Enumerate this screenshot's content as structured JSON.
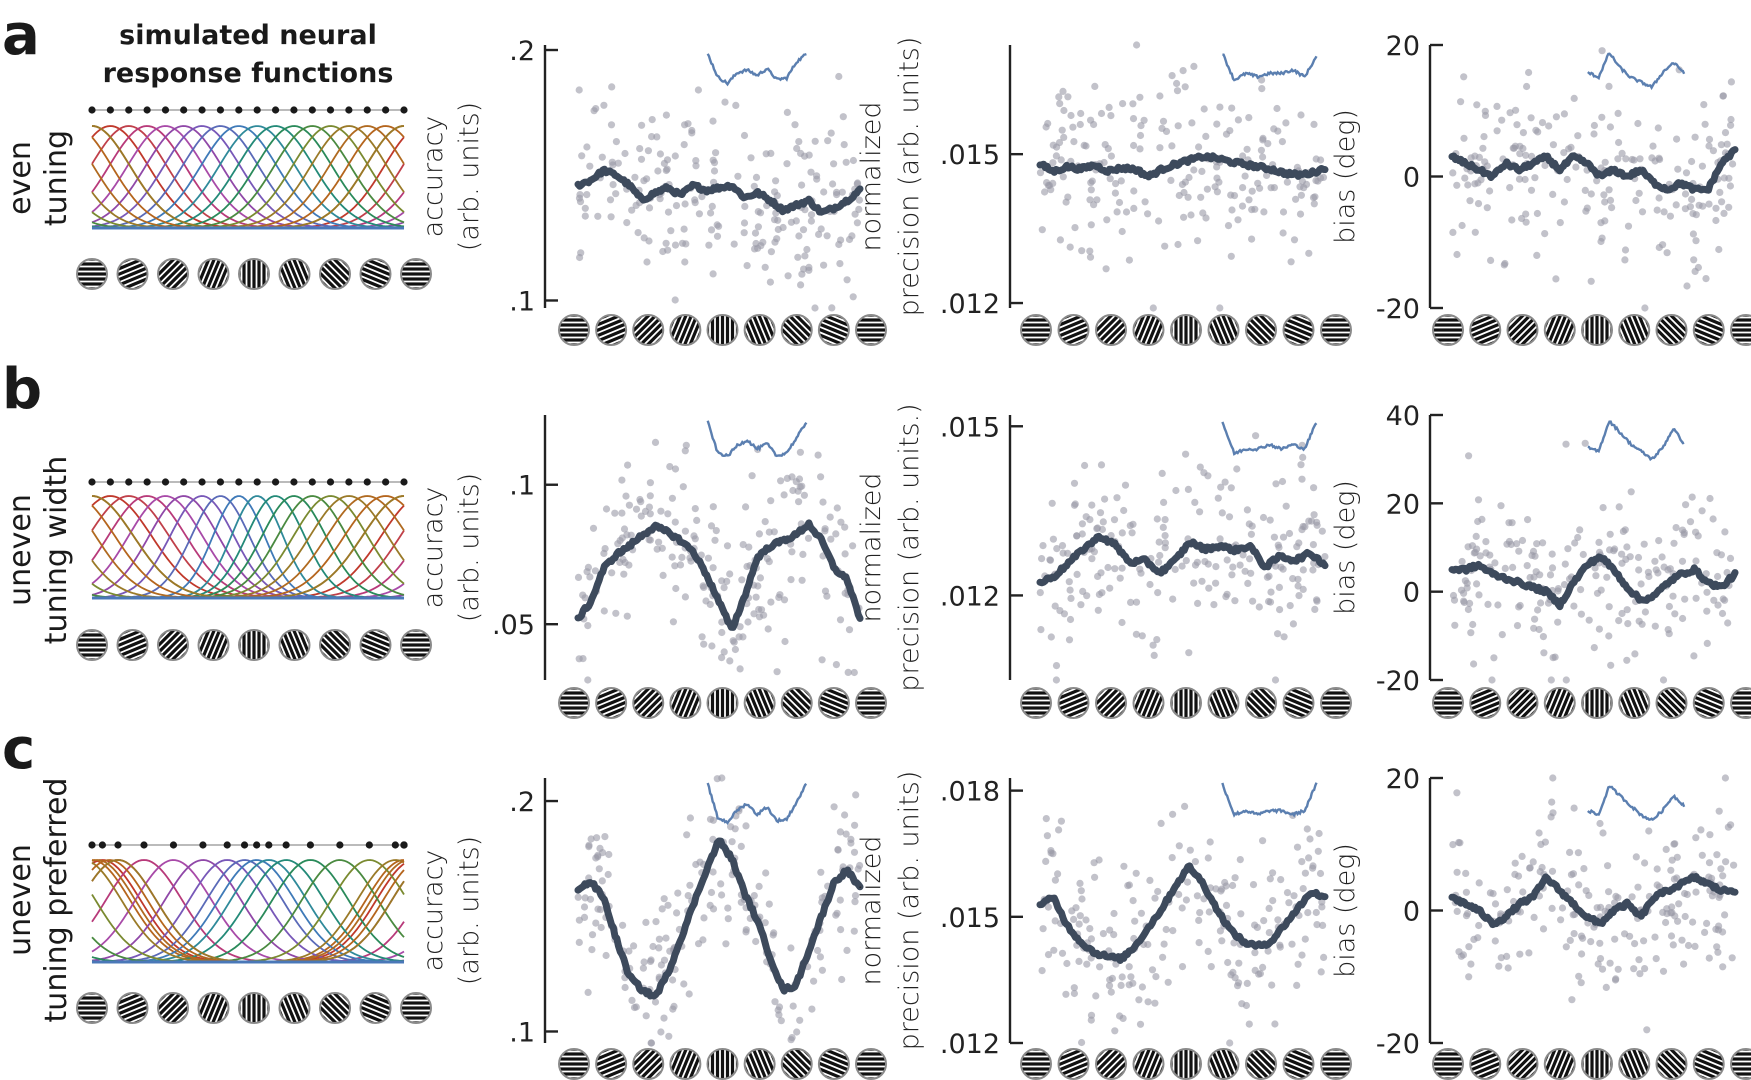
{
  "figure": {
    "title_line1": "simulated neural",
    "title_line2": "response functions"
  },
  "colors": {
    "dots": "#9a9aa6",
    "smooth_line": "#3d4a5c",
    "inset_line": "#5b7fb0",
    "axis": "#222222"
  },
  "rows": [
    {
      "letter": "a",
      "label_line1": "even",
      "label_line2": "tuning",
      "preferred_orientations_deg": [
        0,
        10.6,
        21.2,
        31.8,
        42.4,
        52.9,
        63.5,
        74.1,
        84.7,
        95.3,
        105.9,
        116.5,
        127.1,
        137.6,
        148.2,
        158.8,
        169.4,
        180
      ],
      "tuning_width": "even"
    },
    {
      "letter": "b",
      "label_line1": "uneven",
      "label_line2": "tuning width",
      "preferred_orientations_deg": [
        0,
        10.6,
        21.2,
        31.8,
        42.4,
        52.9,
        63.5,
        74.1,
        84.7,
        95.3,
        105.9,
        116.5,
        127.1,
        137.6,
        148.2,
        158.8,
        169.4,
        180
      ],
      "tuning_width": "uneven"
    },
    {
      "letter": "c",
      "label_line1": "uneven",
      "label_line2": "tuning preferred",
      "preferred_orientations_deg": [
        0,
        6,
        15,
        30,
        47,
        64,
        78,
        88,
        95,
        102,
        112,
        126,
        143,
        160,
        175,
        183,
        190,
        195
      ],
      "tuning_width": "even"
    }
  ],
  "stimulus_orientations_deg": [
    0,
    22.5,
    45,
    67.5,
    90,
    112.5,
    135,
    157.5,
    180
  ],
  "chart_data": [
    {
      "type": "scatter",
      "row": "a",
      "metric": "accuracy",
      "ylabel_line1": "accuracy",
      "ylabel_line2": "(arb. units)",
      "ylim": [
        0.097,
        0.202
      ],
      "yticks": [
        0.1,
        0.2
      ],
      "yticklabels": [
        ".1",
        ".2"
      ],
      "smooth": [
        0.146,
        0.148,
        0.152,
        0.15,
        0.146,
        0.14,
        0.143,
        0.145,
        0.142,
        0.146,
        0.144,
        0.145,
        0.146,
        0.141,
        0.143,
        0.14,
        0.136,
        0.138,
        0.14,
        0.135,
        0.137,
        0.14,
        0.144
      ],
      "inset": [
        0.202,
        0.185,
        0.18,
        0.188,
        0.19,
        0.186,
        0.191,
        0.183,
        0.184,
        0.196,
        0.202
      ],
      "inset_range": [
        0.17,
        0.21
      ]
    },
    {
      "type": "scatter",
      "row": "a",
      "metric": "normalized precision",
      "ylabel_line1": "normalized",
      "ylabel_line2": "precision (arb. units)",
      "ylim": [
        0.0119,
        0.0172
      ],
      "yticks": [
        0.012,
        0.015
      ],
      "yticklabels": [
        ".012",
        ".015"
      ],
      "smooth": [
        0.0148,
        0.01465,
        0.01475,
        0.0147,
        0.01478,
        0.01466,
        0.01472,
        0.0147,
        0.01455,
        0.0147,
        0.0148,
        0.01488,
        0.01495,
        0.01492,
        0.01485,
        0.0148,
        0.01475,
        0.0147,
        0.01462,
        0.01458,
        0.01462,
        0.01472
      ],
      "inset": [
        0.0171,
        0.0163,
        0.0165,
        0.0164,
        0.0165,
        0.0165,
        0.0166,
        0.0164,
        0.017
      ],
      "inset_range": [
        0.0158,
        0.0174
      ]
    },
    {
      "type": "scatter",
      "row": "a",
      "metric": "bias",
      "ylabel_line1": "bias (deg)",
      "ylabel_line2": "",
      "ylim": [
        -20,
        20
      ],
      "yticks": [
        -20,
        0,
        20
      ],
      "yticklabels": [
        "-20",
        "0",
        "20"
      ],
      "smooth": [
        3,
        2,
        1,
        0,
        2,
        1,
        2,
        3,
        1,
        3,
        2,
        0,
        1,
        0,
        1,
        -1,
        -2,
        -1,
        -2,
        -2,
        2,
        4
      ],
      "inset": [
        15,
        14,
        19,
        16,
        14,
        13,
        12,
        15,
        17,
        15
      ],
      "inset_range": [
        10,
        21
      ]
    },
    {
      "type": "scatter",
      "row": "b",
      "metric": "accuracy",
      "ylabel_line1": "accuracy",
      "ylabel_line2": "(arb. units)",
      "ylim": [
        0.03,
        0.125
      ],
      "yticks": [
        0.05,
        0.1
      ],
      "yticklabels": [
        ".05",
        ".1"
      ],
      "smooth": [
        0.052,
        0.058,
        0.07,
        0.075,
        0.078,
        0.082,
        0.085,
        0.083,
        0.08,
        0.076,
        0.068,
        0.058,
        0.048,
        0.06,
        0.074,
        0.078,
        0.08,
        0.082,
        0.086,
        0.08,
        0.07,
        0.066,
        0.052
      ],
      "inset": [
        0.125,
        0.108,
        0.106,
        0.112,
        0.115,
        0.11,
        0.113,
        0.106,
        0.108,
        0.116,
        0.125
      ],
      "inset_range": [
        0.1,
        0.13
      ]
    },
    {
      "type": "scatter",
      "row": "b",
      "metric": "normalized precision",
      "ylabel_line1": "normalized",
      "ylabel_line2": "precision (arb. units.)",
      "ylim": [
        0.0105,
        0.0152
      ],
      "yticks": [
        0.012,
        0.015
      ],
      "yticklabels": [
        ".012",
        ".015"
      ],
      "smooth": [
        0.01222,
        0.01235,
        0.0126,
        0.01285,
        0.01305,
        0.0129,
        0.01258,
        0.01262,
        0.0124,
        0.01262,
        0.01295,
        0.01282,
        0.01288,
        0.0128,
        0.01288,
        0.0125,
        0.0127,
        0.01262,
        0.01275,
        0.01255
      ],
      "inset": [
        0.015,
        0.0143,
        0.0144,
        0.0144,
        0.0145,
        0.0144,
        0.0145,
        0.0144,
        0.015
      ],
      "inset_range": [
        0.014,
        0.0152
      ]
    },
    {
      "type": "scatter",
      "row": "b",
      "metric": "bias",
      "ylabel_line1": "bias (deg)",
      "ylabel_line2": "",
      "ylim": [
        -20,
        40
      ],
      "yticks": [
        -20,
        0,
        20,
        40
      ],
      "yticklabels": [
        "-20",
        "0",
        "20",
        "40"
      ],
      "smooth": [
        5,
        5,
        6,
        4,
        3,
        2,
        1,
        0,
        -3,
        2,
        6,
        8,
        5,
        1,
        -2,
        -1,
        2,
        4,
        5,
        2,
        1,
        4
      ],
      "inset": [
        31,
        30,
        38,
        35,
        32,
        30,
        28,
        31,
        36,
        32
      ],
      "inset_range": [
        26,
        40
      ]
    },
    {
      "type": "scatter",
      "row": "c",
      "metric": "accuracy",
      "ylabel_line1": "accuracy",
      "ylabel_line2": "(arb. units)",
      "ylim": [
        0.095,
        0.21
      ],
      "yticks": [
        0.1,
        0.2
      ],
      "yticklabels": [
        ".1",
        ".2"
      ],
      "smooth": [
        0.162,
        0.165,
        0.158,
        0.14,
        0.124,
        0.118,
        0.115,
        0.125,
        0.14,
        0.155,
        0.17,
        0.183,
        0.175,
        0.16,
        0.148,
        0.132,
        0.118,
        0.12,
        0.135,
        0.15,
        0.165,
        0.17,
        0.162
      ],
      "inset": [
        0.21,
        0.188,
        0.185,
        0.193,
        0.197,
        0.19,
        0.195,
        0.186,
        0.187,
        0.198,
        0.21
      ],
      "inset_range": [
        0.18,
        0.215
      ]
    },
    {
      "type": "scatter",
      "row": "c",
      "metric": "normalized precision",
      "ylabel_line1": "normalized",
      "ylabel_line2": "precision (arb. units)",
      "ylim": [
        0.012,
        0.0183
      ],
      "yticks": [
        0.012,
        0.015,
        0.018
      ],
      "yticklabels": [
        ".012",
        ".015",
        ".018"
      ],
      "smooth": [
        0.0153,
        0.01545,
        0.0148,
        0.0144,
        0.01415,
        0.01405,
        0.014,
        0.0143,
        0.01475,
        0.0152,
        0.01575,
        0.0162,
        0.0158,
        0.0152,
        0.0147,
        0.0144,
        0.0143,
        0.0144,
        0.0148,
        0.0152,
        0.0156,
        0.01545
      ],
      "inset": [
        0.018,
        0.0172,
        0.0173,
        0.0172,
        0.0173,
        0.0173,
        0.0172,
        0.0173,
        0.018
      ],
      "inset_range": [
        0.0168,
        0.0182
      ]
    },
    {
      "type": "scatter",
      "row": "c",
      "metric": "bias",
      "ylabel_line1": "bias (deg)",
      "ylabel_line2": "",
      "ylim": [
        -20,
        20
      ],
      "yticks": [
        -20,
        0,
        20
      ],
      "yticklabels": [
        "-20",
        "0",
        "20"
      ],
      "smooth": [
        2,
        1,
        0,
        -2,
        -1,
        1,
        2,
        5,
        3,
        1,
        -1,
        -2,
        0,
        1,
        -1,
        2,
        3,
        4,
        5,
        4,
        3,
        3
      ],
      "inset": [
        14,
        13,
        19,
        17,
        15,
        13,
        12,
        14,
        17,
        15
      ],
      "inset_range": [
        10,
        21
      ]
    }
  ]
}
